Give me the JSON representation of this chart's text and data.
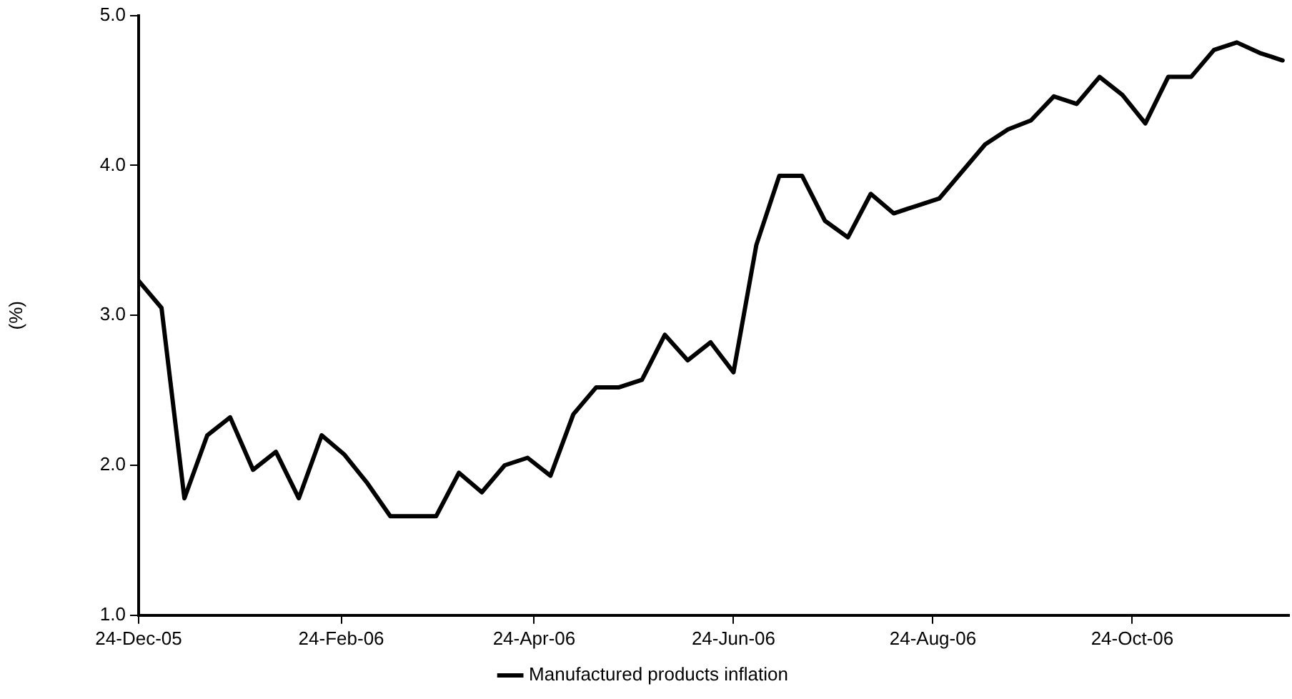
{
  "chart_data": {
    "type": "line",
    "ylabel": "(%)",
    "legend": "bottom",
    "grid": false,
    "marker": "none",
    "line_style": "solid",
    "x": [
      "2005-12-24",
      "2005-12-31",
      "2006-01-07",
      "2006-01-14",
      "2006-01-21",
      "2006-01-28",
      "2006-02-04",
      "2006-02-11",
      "2006-02-18",
      "2006-02-25",
      "2006-03-04",
      "2006-03-11",
      "2006-03-18",
      "2006-03-25",
      "2006-04-01",
      "2006-04-08",
      "2006-04-15",
      "2006-04-22",
      "2006-04-29",
      "2006-05-06",
      "2006-05-13",
      "2006-05-20",
      "2006-05-27",
      "2006-06-03",
      "2006-06-10",
      "2006-06-17",
      "2006-06-24",
      "2006-07-01",
      "2006-07-08",
      "2006-07-15",
      "2006-07-22",
      "2006-07-29",
      "2006-08-05",
      "2006-08-12",
      "2006-08-19",
      "2006-08-26",
      "2006-09-02",
      "2006-09-09",
      "2006-09-16",
      "2006-09-23",
      "2006-09-30",
      "2006-10-07",
      "2006-10-14",
      "2006-10-21",
      "2006-10-28",
      "2006-11-04",
      "2006-11-11",
      "2006-11-18",
      "2006-11-25",
      "2006-12-02",
      "2006-12-09"
    ],
    "series": [
      {
        "name": "Manufactured products inflation",
        "color": "#000000",
        "values": [
          3.23,
          3.05,
          1.78,
          2.2,
          2.32,
          1.97,
          2.09,
          1.78,
          2.2,
          2.07,
          1.88,
          1.66,
          1.66,
          1.66,
          1.95,
          1.82,
          2.0,
          2.05,
          1.93,
          2.34,
          2.52,
          2.52,
          2.57,
          2.87,
          2.7,
          2.82,
          2.62,
          3.47,
          3.93,
          3.93,
          3.63,
          3.52,
          3.81,
          3.68,
          3.73,
          3.78,
          3.96,
          4.14,
          4.24,
          4.3,
          4.46,
          4.41,
          4.59,
          4.47,
          4.28,
          4.59,
          4.59,
          4.77,
          4.82,
          4.75,
          4.7
        ]
      }
    ],
    "xlim": [
      "2005-12-24",
      "2006-12-11"
    ],
    "xticks": [
      {
        "value": "2005-12-24",
        "label": "24-Dec-05"
      },
      {
        "value": "2006-02-24",
        "label": "24-Feb-06"
      },
      {
        "value": "2006-04-24",
        "label": "24-Apr-06"
      },
      {
        "value": "2006-06-24",
        "label": "24-Jun-06"
      },
      {
        "value": "2006-08-24",
        "label": "24-Aug-06"
      },
      {
        "value": "2006-10-24",
        "label": "24-Oct-06"
      }
    ],
    "ylim": [
      1.0,
      5.0
    ],
    "yticks": [
      {
        "value": 1.0,
        "label": "1.0"
      },
      {
        "value": 2.0,
        "label": "2.0"
      },
      {
        "value": 3.0,
        "label": "3.0"
      },
      {
        "value": 4.0,
        "label": "4.0"
      },
      {
        "value": 5.0,
        "label": "5.0"
      }
    ]
  }
}
